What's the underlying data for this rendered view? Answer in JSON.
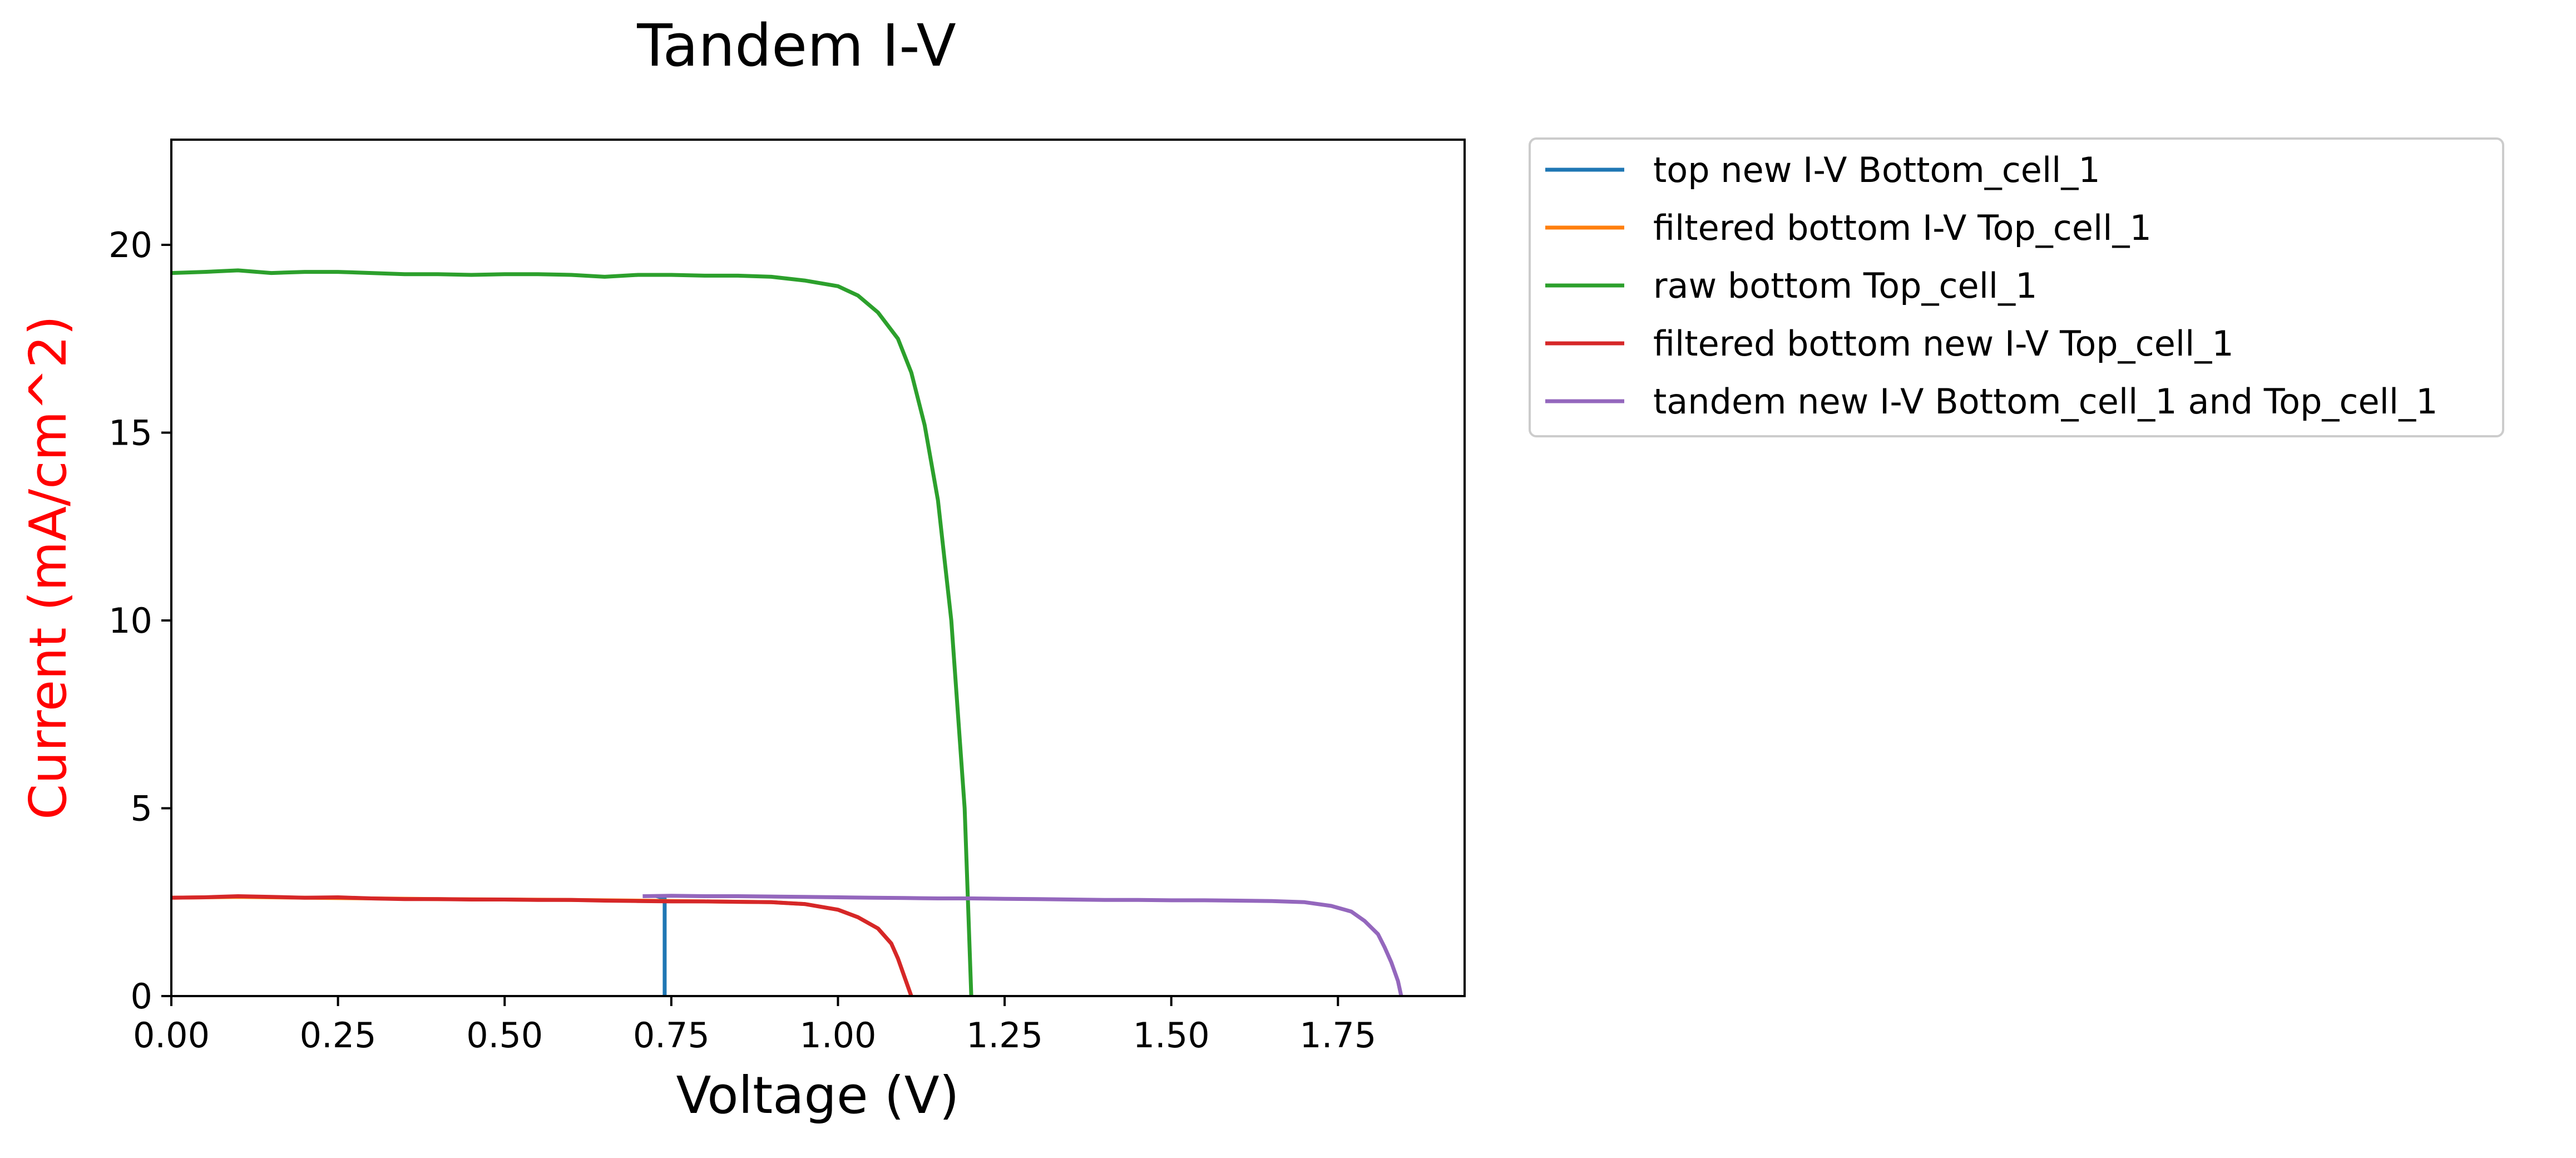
{
  "chart_data": {
    "type": "line",
    "title": "Tandem I-V",
    "xlabel": "Voltage (V)",
    "ylabel": "Current (mA/cm^2)",
    "ylabel_color": "#ff0000",
    "xlim": [
      0,
      1.94
    ],
    "ylim": [
      0,
      22.8
    ],
    "x_ticks": [
      0,
      0.25,
      0.5,
      0.75,
      1.0,
      1.25,
      1.5,
      1.75
    ],
    "x_tick_labels": [
      "0.00",
      "0.25",
      "0.50",
      "0.75",
      "1.00",
      "1.25",
      "1.50",
      "1.75"
    ],
    "y_ticks": [
      0,
      5,
      10,
      15,
      20
    ],
    "y_tick_labels": [
      "0",
      "5",
      "10",
      "15",
      "20"
    ],
    "grid": false,
    "legend_position": "outside-upper-right",
    "series": [
      {
        "name": "top new I-V Bottom_cell_1",
        "color": "#1f77b4",
        "points": [
          [
            0.74,
            0
          ],
          [
            0.74,
            0.3
          ],
          [
            0.74,
            0.8
          ],
          [
            0.74,
            1.3
          ],
          [
            0.74,
            1.8
          ],
          [
            0.74,
            2.3
          ],
          [
            0.74,
            2.6
          ],
          [
            0.73,
            2.65
          ]
        ]
      },
      {
        "name": "filtered bottom I-V Top_cell_1",
        "color": "#ff7f0e",
        "points": [
          [
            0.0,
            2.62
          ],
          [
            0.1,
            2.64
          ],
          [
            0.2,
            2.62
          ],
          [
            0.3,
            2.6
          ],
          [
            0.4,
            2.58
          ],
          [
            0.5,
            2.57
          ],
          [
            0.6,
            2.56
          ],
          [
            0.7,
            2.54
          ],
          [
            0.8,
            2.52
          ],
          [
            0.9,
            2.5
          ],
          [
            0.95,
            2.45
          ],
          [
            1.0,
            2.3
          ],
          [
            1.03,
            2.1
          ],
          [
            1.06,
            1.8
          ],
          [
            1.08,
            1.4
          ],
          [
            1.09,
            1.0
          ],
          [
            1.1,
            0.5
          ],
          [
            1.11,
            0.0
          ]
        ]
      },
      {
        "name": "raw bottom Top_cell_1",
        "color": "#2ca02c",
        "points": [
          [
            0.0,
            19.25
          ],
          [
            0.05,
            19.28
          ],
          [
            0.1,
            19.32
          ],
          [
            0.15,
            19.25
          ],
          [
            0.2,
            19.28
          ],
          [
            0.25,
            19.28
          ],
          [
            0.3,
            19.25
          ],
          [
            0.35,
            19.22
          ],
          [
            0.4,
            19.22
          ],
          [
            0.45,
            19.2
          ],
          [
            0.5,
            19.22
          ],
          [
            0.55,
            19.22
          ],
          [
            0.6,
            19.2
          ],
          [
            0.65,
            19.15
          ],
          [
            0.7,
            19.2
          ],
          [
            0.75,
            19.2
          ],
          [
            0.8,
            19.18
          ],
          [
            0.85,
            19.18
          ],
          [
            0.9,
            19.15
          ],
          [
            0.95,
            19.05
          ],
          [
            1.0,
            18.9
          ],
          [
            1.03,
            18.65
          ],
          [
            1.06,
            18.2
          ],
          [
            1.09,
            17.5
          ],
          [
            1.11,
            16.6
          ],
          [
            1.13,
            15.2
          ],
          [
            1.15,
            13.2
          ],
          [
            1.17,
            10.0
          ],
          [
            1.18,
            7.5
          ],
          [
            1.19,
            5.0
          ],
          [
            1.195,
            2.5
          ],
          [
            1.2,
            0.0
          ]
        ]
      },
      {
        "name": "filtered bottom new I-V Top_cell_1",
        "color": "#d62728",
        "points": [
          [
            0.0,
            2.62
          ],
          [
            0.05,
            2.63
          ],
          [
            0.1,
            2.66
          ],
          [
            0.15,
            2.64
          ],
          [
            0.2,
            2.62
          ],
          [
            0.25,
            2.63
          ],
          [
            0.3,
            2.6
          ],
          [
            0.35,
            2.58
          ],
          [
            0.4,
            2.58
          ],
          [
            0.45,
            2.57
          ],
          [
            0.5,
            2.57
          ],
          [
            0.55,
            2.56
          ],
          [
            0.6,
            2.56
          ],
          [
            0.65,
            2.54
          ],
          [
            0.7,
            2.53
          ],
          [
            0.75,
            2.52
          ],
          [
            0.8,
            2.52
          ],
          [
            0.85,
            2.51
          ],
          [
            0.9,
            2.5
          ],
          [
            0.95,
            2.45
          ],
          [
            1.0,
            2.3
          ],
          [
            1.03,
            2.1
          ],
          [
            1.06,
            1.8
          ],
          [
            1.08,
            1.4
          ],
          [
            1.09,
            1.0
          ],
          [
            1.1,
            0.5
          ],
          [
            1.11,
            0.0
          ]
        ]
      },
      {
        "name": "tandem new I-V Bottom_cell_1 and Top_cell_1",
        "color": "#9467bd",
        "points": [
          [
            0.71,
            2.66
          ],
          [
            0.75,
            2.67
          ],
          [
            0.8,
            2.66
          ],
          [
            0.85,
            2.66
          ],
          [
            0.9,
            2.65
          ],
          [
            0.95,
            2.64
          ],
          [
            1.0,
            2.63
          ],
          [
            1.05,
            2.62
          ],
          [
            1.1,
            2.61
          ],
          [
            1.15,
            2.6
          ],
          [
            1.2,
            2.6
          ],
          [
            1.25,
            2.59
          ],
          [
            1.3,
            2.58
          ],
          [
            1.35,
            2.57
          ],
          [
            1.4,
            2.56
          ],
          [
            1.45,
            2.56
          ],
          [
            1.5,
            2.55
          ],
          [
            1.55,
            2.55
          ],
          [
            1.6,
            2.54
          ],
          [
            1.65,
            2.53
          ],
          [
            1.7,
            2.5
          ],
          [
            1.74,
            2.4
          ],
          [
            1.77,
            2.25
          ],
          [
            1.79,
            2.0
          ],
          [
            1.81,
            1.65
          ],
          [
            1.82,
            1.3
          ],
          [
            1.83,
            0.9
          ],
          [
            1.84,
            0.4
          ],
          [
            1.845,
            0.0
          ]
        ]
      }
    ]
  }
}
